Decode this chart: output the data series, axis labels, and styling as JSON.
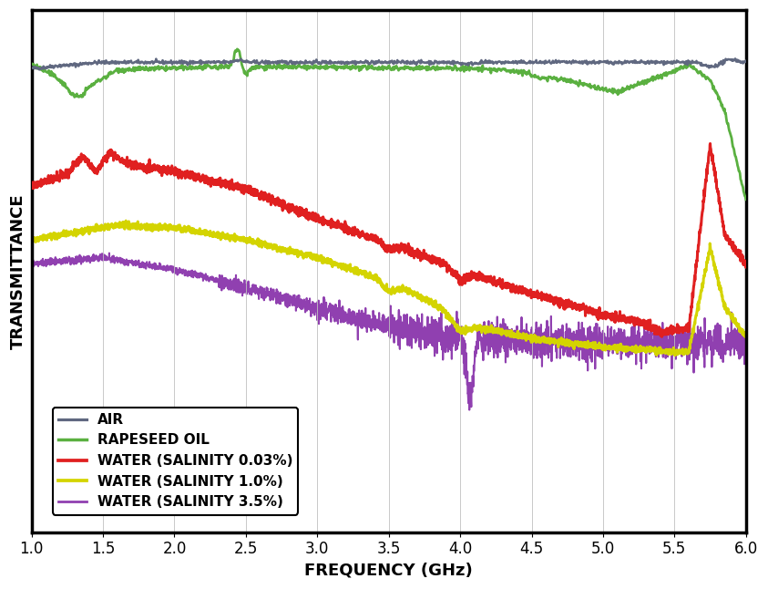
{
  "xlabel": "FREQUENCY (GHz)",
  "ylabel": "TRANSMITTANCE",
  "xlim": [
    1.0,
    6.0
  ],
  "ylim": [
    -0.6,
    1.15
  ],
  "grid": true,
  "legend_labels": [
    "AIR",
    "RAPESEED OIL",
    "WATER (SALINITY 0.03%)",
    "WATER (SALINITY 1.0%)",
    "WATER (SALINITY 3.5%)"
  ],
  "colors": [
    "#606880",
    "#5ab040",
    "#e02020",
    "#d4d400",
    "#9040b0"
  ],
  "linewidths": [
    1.8,
    2.0,
    2.2,
    2.2,
    1.5
  ],
  "background_color": "#ffffff",
  "xticks": [
    1.0,
    1.5,
    2.0,
    2.5,
    3.0,
    3.5,
    4.0,
    4.5,
    5.0,
    5.5,
    6.0
  ],
  "font_family": "Arial",
  "label_fontsize": 13,
  "tick_fontsize": 12,
  "legend_fontsize": 11
}
